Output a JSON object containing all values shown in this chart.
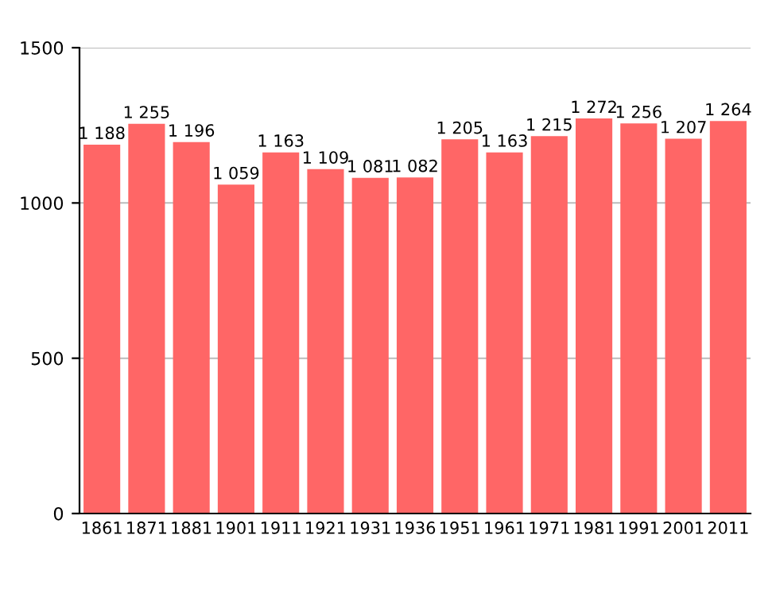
{
  "chart_data": {
    "type": "bar",
    "categories": [
      "1861",
      "1871",
      "1881",
      "1901",
      "1911",
      "1921",
      "1931",
      "1936",
      "1951",
      "1961",
      "1971",
      "1981",
      "1991",
      "2001",
      "2011"
    ],
    "values": [
      1188,
      1255,
      1196,
      1059,
      1163,
      1109,
      1081,
      1082,
      1205,
      1163,
      1215,
      1272,
      1256,
      1207,
      1264
    ],
    "value_labels": [
      "1 188",
      "1 255",
      "1 196",
      "1 059",
      "1 163",
      "1 109",
      "1 081",
      "1 082",
      "1 205",
      "1 163",
      "1 215",
      "1 272",
      "1 256",
      "1 207",
      "1 264"
    ],
    "color": "#ff6666",
    "ylim": [
      0,
      1500
    ],
    "yticks": [
      0,
      500,
      1000,
      1500
    ],
    "grid": "y"
  }
}
